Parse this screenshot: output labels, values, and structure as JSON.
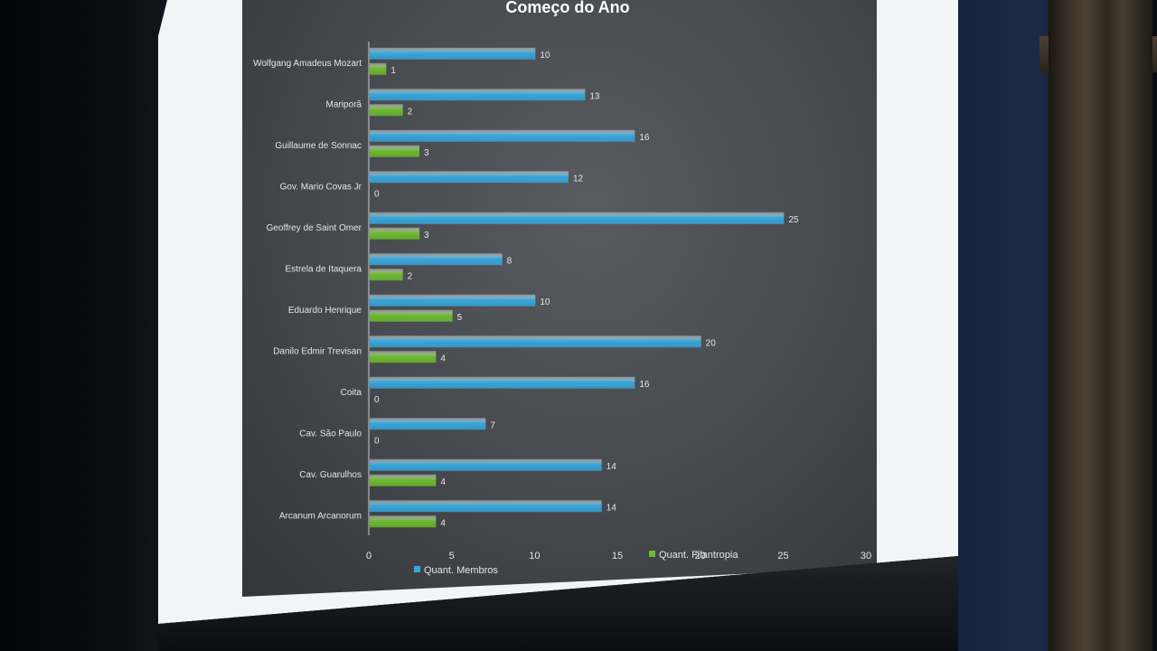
{
  "chart_data": {
    "type": "bar",
    "orientation": "horizontal",
    "title": "Começo do Ano",
    "categories": [
      "Wolfgang Amadeus Mozart",
      "Mariporã",
      "Guillaume de Sonnac",
      "Gov. Mario Covas Jr",
      "Geoffrey de Saint Omer",
      "Estrela de Itaquera",
      "Eduardo Henrique",
      "Danilo Edmir Trevisan",
      "Coita",
      "Cav. São Paulo",
      "Cav. Guarulhos",
      "Arcanum Arcanorum"
    ],
    "series": [
      {
        "name": "Quant. Membros",
        "color": "#36a6dc",
        "values": [
          10,
          13,
          16,
          12,
          25,
          8,
          10,
          20,
          16,
          7,
          14,
          14
        ]
      },
      {
        "name": "Quant. Filantropia",
        "color": "#6dbb2e",
        "values": [
          1,
          2,
          3,
          0,
          3,
          2,
          5,
          4,
          0,
          0,
          4,
          4
        ]
      }
    ],
    "xlim": [
      0,
      30
    ],
    "xticks": [
      0,
      5,
      10,
      15,
      20,
      25,
      30
    ],
    "grid": false,
    "legend_position": "bottom"
  }
}
